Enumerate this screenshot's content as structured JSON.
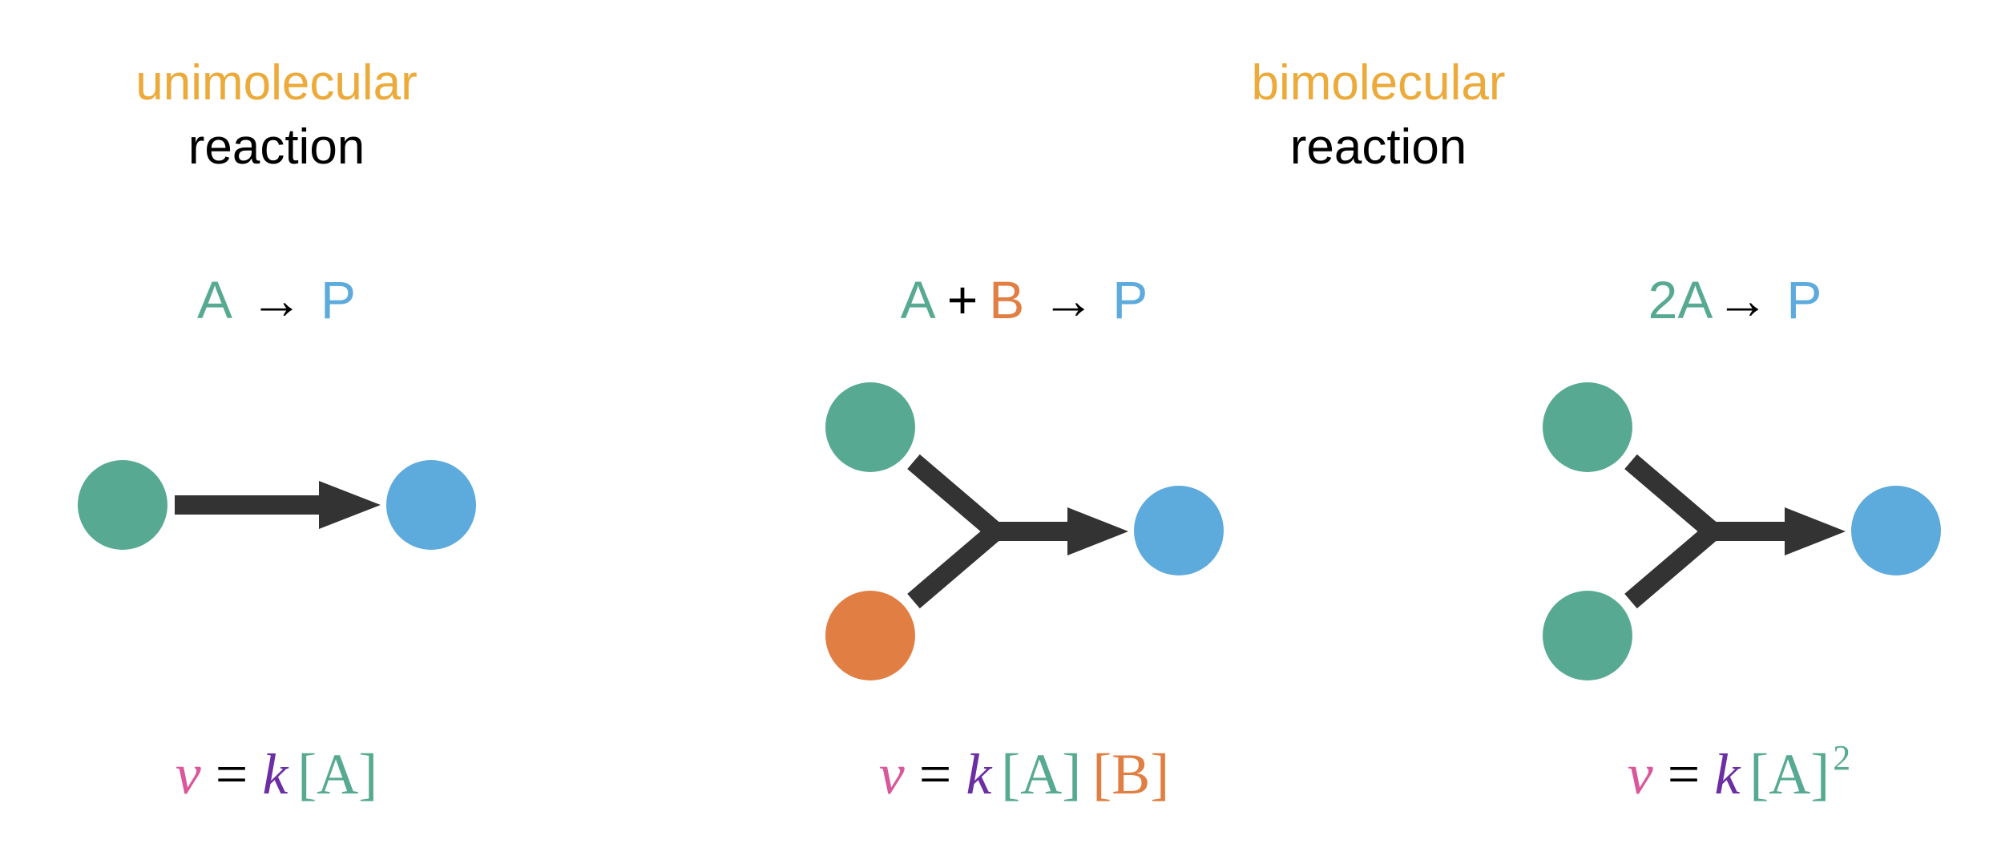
{
  "headings": {
    "unimolecular": {
      "line1": "unimolecular",
      "line2": "reaction"
    },
    "bimolecular": {
      "line1": "bimolecular",
      "line2": "reaction"
    }
  },
  "panels": {
    "uni": {
      "equation": {
        "reactant": "A",
        "arrow": "→",
        "product": "P"
      },
      "rate": {
        "v": "ν",
        "eq": "=",
        "k": "k",
        "a": "[A]"
      }
    },
    "bi_ab": {
      "equation": {
        "reactant1": "A",
        "plus": "+",
        "reactant2": "B",
        "arrow": "→",
        "product": "P"
      },
      "rate": {
        "v": "ν",
        "eq": "=",
        "k": "k",
        "a": "[A]",
        "b": "[B]"
      }
    },
    "bi_2a": {
      "equation": {
        "reactant": "2A",
        "arrow": "→",
        "product": "P"
      },
      "rate": {
        "v": "ν",
        "eq": "=",
        "k": "k",
        "a": "[A]",
        "exp": "2"
      }
    }
  },
  "colors": {
    "heading": "#EBAA3A",
    "species_a": "#57AA91",
    "species_b": "#E17E43",
    "product": "#5DAADC",
    "arrow": "#333333",
    "rate_v": "#D9579A",
    "rate_k": "#6B2FA3",
    "text": "#000000"
  }
}
